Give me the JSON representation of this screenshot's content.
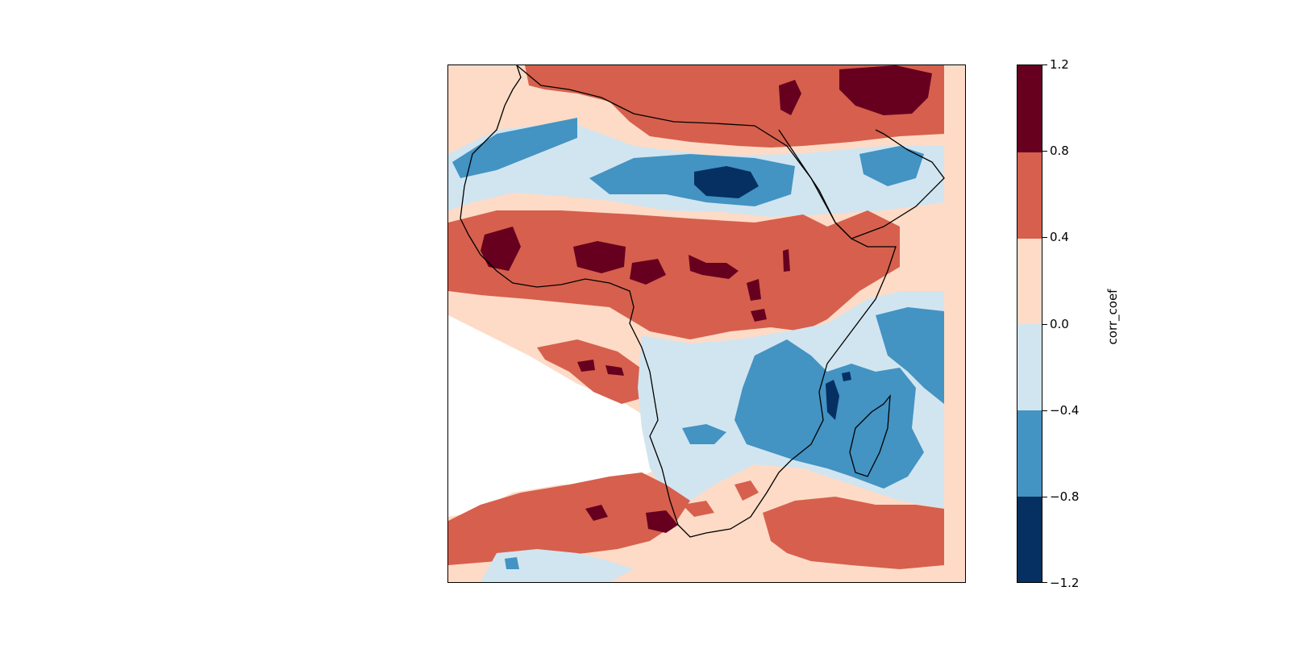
{
  "colorbar": {
    "label": "corr_coef",
    "ticks": [
      "1.2",
      "0.8",
      "0.4",
      "0.0",
      "−0.4",
      "−0.8",
      "−1.2"
    ],
    "levels": [
      -1.2,
      -0.8,
      -0.4,
      0.0,
      0.4,
      0.8,
      1.2
    ],
    "colors": [
      "#053061",
      "#4393c3",
      "#d1e5f0",
      "#fddbc7",
      "#d6604d",
      "#67001f"
    ]
  },
  "map": {
    "region": "Africa",
    "variable": "corr_coef",
    "missing_color": "#ffffff",
    "coastline_color": "#000000"
  }
}
